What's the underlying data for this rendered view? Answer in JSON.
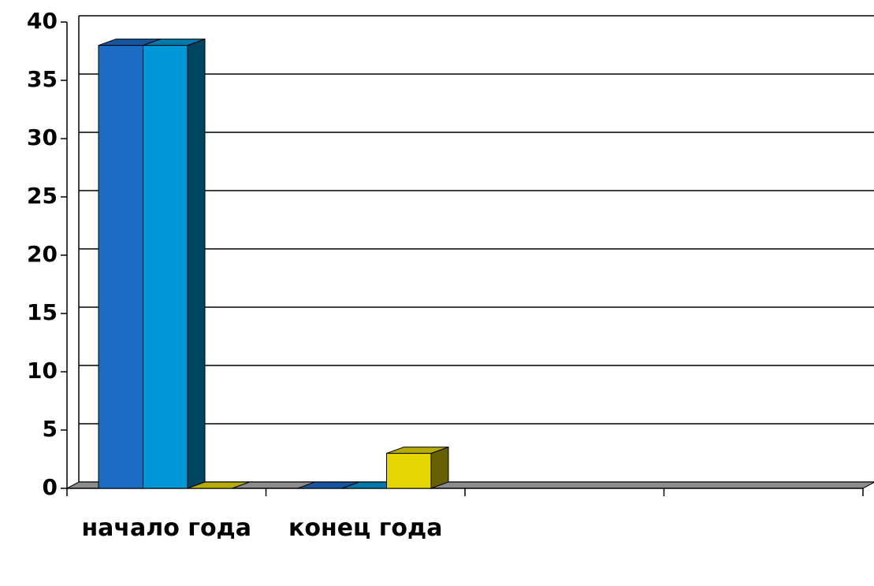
{
  "chart_data": {
    "type": "bar3d",
    "categories": [
      "начало года",
      "конец года",
      null,
      null
    ],
    "series": [
      {
        "color": "#1c6cc6",
        "values": [
          38,
          0,
          null,
          null
        ]
      },
      {
        "color": "#0097d6",
        "values": [
          38,
          0,
          null,
          null
        ]
      },
      {
        "color": "#e4d600",
        "values": [
          0,
          3,
          null,
          null
        ]
      }
    ],
    "ylim": [
      0,
      40
    ],
    "yticks": [
      0,
      5,
      10,
      15,
      20,
      25,
      30,
      35,
      40
    ],
    "grid": true
  }
}
